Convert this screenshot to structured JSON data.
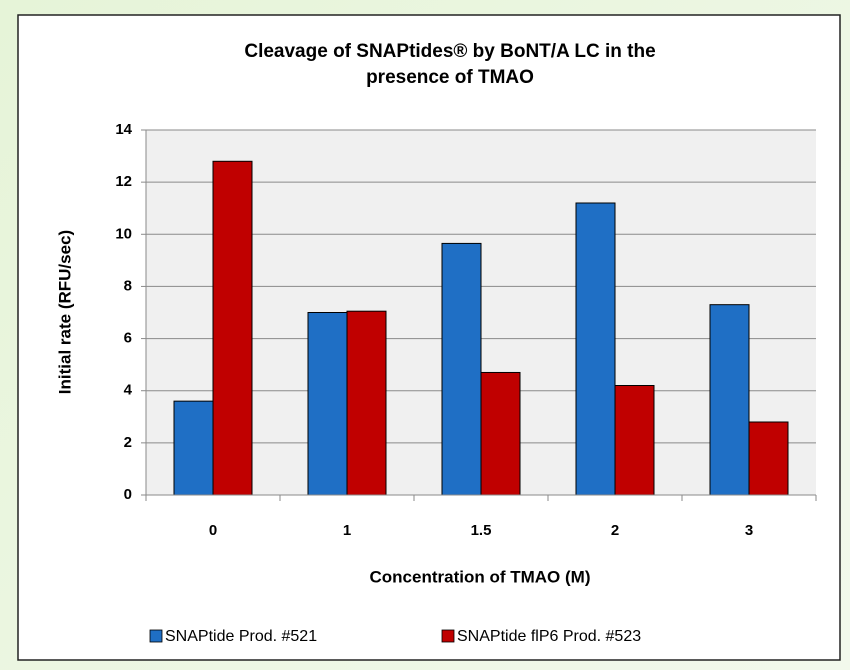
{
  "chart_data": {
    "type": "bar",
    "title": "Cleavage of SNAPtides® by BoNT/A LC in the",
    "subtitle": "presence of TMAO",
    "x_label": "Concentration of TMAO (M)",
    "y_label": "Initial rate (RFU/sec)",
    "categories": [
      "0",
      "1",
      "1.5",
      "2",
      "3"
    ],
    "series": [
      {
        "name": "SNAPtide Prod. #521",
        "color": "#1f6fc5",
        "values": [
          3.6,
          7.0,
          9.65,
          11.2,
          7.3
        ]
      },
      {
        "name": "SNAPtide flP6 Prod. #523",
        "color": "#c00000",
        "values": [
          12.8,
          7.05,
          4.7,
          4.2,
          2.8
        ]
      }
    ],
    "ylim": [
      0,
      14
    ],
    "yticks": [
      0,
      2,
      4,
      6,
      8,
      10,
      12,
      14
    ],
    "grid": true,
    "legend": "bottom"
  }
}
